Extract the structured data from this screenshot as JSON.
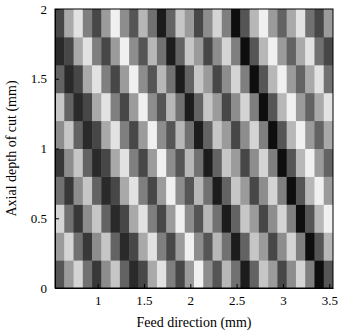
{
  "chart_data": {
    "type": "heatmap",
    "x_label": "Feed direction (mm)",
    "y_label": "Axial depth of cut (mm)",
    "xlim": [
      0.54,
      3.54
    ],
    "ylim": [
      0,
      2
    ],
    "xticks": [
      1,
      1.5,
      2,
      2.5,
      3,
      3.5
    ],
    "yticks": [
      0,
      0.5,
      1,
      1.5,
      2
    ],
    "x": [
      0.59,
      0.69,
      0.79,
      0.89,
      0.99,
      1.09,
      1.19,
      1.29,
      1.39,
      1.49,
      1.59,
      1.69,
      1.79,
      1.89,
      1.99,
      2.09,
      2.19,
      2.29,
      2.39,
      2.49,
      2.59,
      2.69,
      2.79,
      2.89,
      2.99,
      3.09,
      3.19,
      3.29,
      3.39,
      3.49
    ],
    "y": [
      0.1,
      0.3,
      0.5,
      0.7,
      0.9,
      1.1,
      1.3,
      1.5,
      1.7,
      1.9
    ],
    "z": [
      [
        0.35,
        0.6,
        0.8,
        0.45,
        0.25,
        0.55,
        0.75,
        0.4,
        0.2,
        0.3,
        0.65,
        0.85,
        0.5,
        0.3,
        0.6,
        0.9,
        0.55,
        0.35,
        0.7,
        0.45,
        0.15,
        0.4,
        0.75,
        0.6,
        0.3,
        0.55,
        0.8,
        0.5,
        0.1,
        0.35
      ],
      [
        0.6,
        0.8,
        0.45,
        0.25,
        0.55,
        0.75,
        0.4,
        0.2,
        0.3,
        0.65,
        0.85,
        0.5,
        0.3,
        0.6,
        0.9,
        0.55,
        0.35,
        0.7,
        0.45,
        0.15,
        0.4,
        0.75,
        0.6,
        0.3,
        0.55,
        0.8,
        0.5,
        0.1,
        0.35,
        0.7
      ],
      [
        0.8,
        0.45,
        0.25,
        0.55,
        0.75,
        0.4,
        0.2,
        0.3,
        0.65,
        0.85,
        0.5,
        0.3,
        0.6,
        0.9,
        0.55,
        0.35,
        0.7,
        0.45,
        0.15,
        0.4,
        0.75,
        0.6,
        0.3,
        0.55,
        0.8,
        0.5,
        0.1,
        0.35,
        0.7,
        0.9
      ],
      [
        0.45,
        0.25,
        0.55,
        0.75,
        0.4,
        0.2,
        0.3,
        0.65,
        0.85,
        0.5,
        0.3,
        0.6,
        0.9,
        0.55,
        0.35,
        0.7,
        0.45,
        0.15,
        0.4,
        0.75,
        0.6,
        0.3,
        0.55,
        0.8,
        0.5,
        0.1,
        0.35,
        0.7,
        0.9,
        0.6
      ],
      [
        0.25,
        0.55,
        0.75,
        0.4,
        0.2,
        0.3,
        0.65,
        0.85,
        0.5,
        0.3,
        0.6,
        0.9,
        0.55,
        0.35,
        0.7,
        0.45,
        0.15,
        0.4,
        0.75,
        0.6,
        0.3,
        0.55,
        0.8,
        0.5,
        0.1,
        0.35,
        0.7,
        0.9,
        0.6,
        0.4
      ],
      [
        0.55,
        0.75,
        0.4,
        0.2,
        0.3,
        0.65,
        0.85,
        0.5,
        0.3,
        0.6,
        0.9,
        0.55,
        0.35,
        0.7,
        0.45,
        0.15,
        0.4,
        0.75,
        0.6,
        0.3,
        0.55,
        0.8,
        0.5,
        0.1,
        0.35,
        0.7,
        0.9,
        0.6,
        0.4,
        0.65
      ],
      [
        0.75,
        0.4,
        0.2,
        0.3,
        0.65,
        0.85,
        0.5,
        0.3,
        0.6,
        0.9,
        0.55,
        0.35,
        0.7,
        0.45,
        0.15,
        0.4,
        0.75,
        0.6,
        0.3,
        0.55,
        0.8,
        0.5,
        0.1,
        0.35,
        0.7,
        0.9,
        0.6,
        0.4,
        0.65,
        0.85
      ],
      [
        0.4,
        0.2,
        0.3,
        0.65,
        0.85,
        0.5,
        0.3,
        0.6,
        0.9,
        0.55,
        0.35,
        0.7,
        0.45,
        0.15,
        0.4,
        0.75,
        0.6,
        0.3,
        0.55,
        0.8,
        0.5,
        0.1,
        0.35,
        0.7,
        0.9,
        0.6,
        0.4,
        0.65,
        0.85,
        0.45
      ],
      [
        0.2,
        0.3,
        0.65,
        0.85,
        0.5,
        0.3,
        0.6,
        0.9,
        0.55,
        0.35,
        0.7,
        0.45,
        0.15,
        0.4,
        0.75,
        0.6,
        0.3,
        0.55,
        0.8,
        0.5,
        0.1,
        0.35,
        0.7,
        0.9,
        0.6,
        0.4,
        0.65,
        0.85,
        0.45,
        0.3
      ],
      [
        0.3,
        0.65,
        0.85,
        0.5,
        0.3,
        0.6,
        0.9,
        0.55,
        0.35,
        0.7,
        0.45,
        0.15,
        0.4,
        0.75,
        0.6,
        0.3,
        0.55,
        0.8,
        0.5,
        0.1,
        0.35,
        0.7,
        0.9,
        0.6,
        0.4,
        0.65,
        0.85,
        0.45,
        0.3,
        0.6
      ]
    ]
  }
}
